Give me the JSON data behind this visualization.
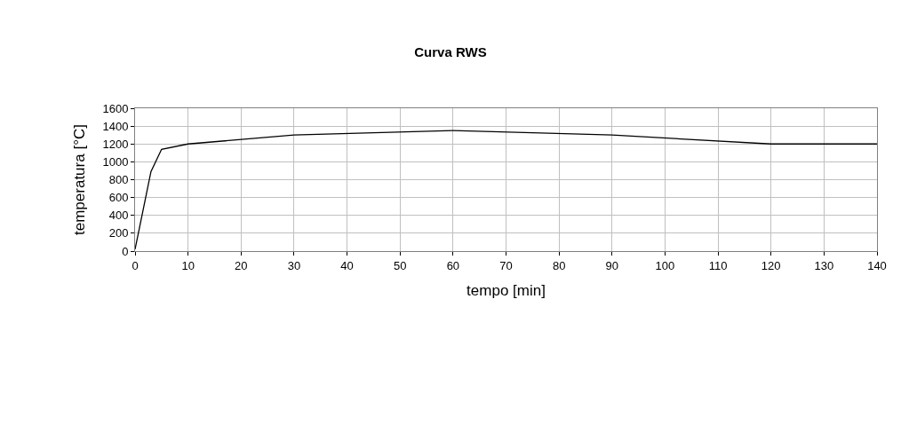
{
  "chart_data": {
    "type": "line",
    "title": "Curva RWS",
    "xlabel": "tempo [min]",
    "ylabel": "temperatura [°C]",
    "x": [
      0,
      3,
      5,
      10,
      30,
      60,
      90,
      120,
      140
    ],
    "series": [
      {
        "color": "#000000",
        "values": [
          20,
          890,
          1140,
          1200,
          1300,
          1350,
          1300,
          1200,
          1200
        ]
      }
    ],
    "xlim": [
      0,
      140
    ],
    "xticks": [
      0,
      10,
      20,
      30,
      40,
      50,
      60,
      70,
      80,
      90,
      100,
      110,
      120,
      130,
      140
    ],
    "ylim": [
      0,
      1600
    ],
    "yticks": [
      0,
      200,
      400,
      600,
      800,
      1000,
      1200,
      1400,
      1600
    ],
    "grid": true,
    "marker": "none",
    "line_style": "solid"
  }
}
